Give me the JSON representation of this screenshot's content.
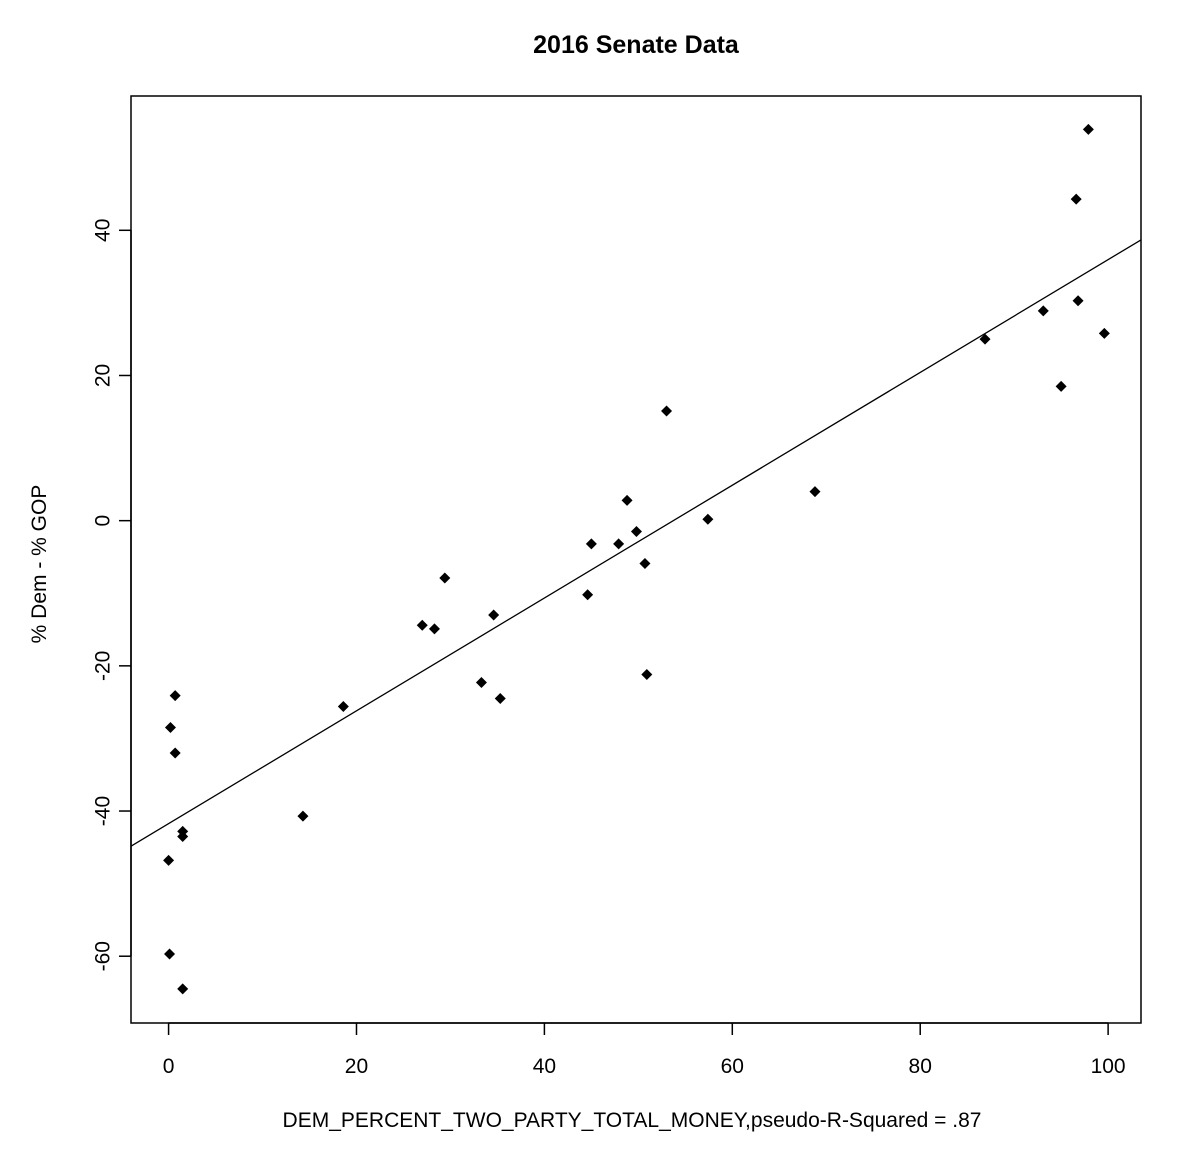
{
  "chart_data": {
    "type": "scatter",
    "title": "2016 Senate Data",
    "xlabel": "DEM_PERCENT_TWO_PARTY_TOTAL_MONEY,pseudo-R-Squared = .87",
    "ylabel": "% Dem - % GOP",
    "xlim": [
      -4,
      103.5
    ],
    "ylim": [
      -69.2,
      58.5
    ],
    "xticks": [
      0,
      20,
      40,
      60,
      80,
      100
    ],
    "yticks": [
      -60,
      -40,
      -20,
      0,
      20,
      40
    ],
    "grid": false,
    "legend": "none",
    "point_color": "#000000",
    "line_color": "#000000",
    "points": [
      {
        "x": 0.0,
        "y": -46.8
      },
      {
        "x": 0.1,
        "y": -59.7
      },
      {
        "x": 0.2,
        "y": -28.5
      },
      {
        "x": 0.7,
        "y": -24.1
      },
      {
        "x": 0.7,
        "y": -32.0
      },
      {
        "x": 1.5,
        "y": -42.8
      },
      {
        "x": 1.5,
        "y": -43.5
      },
      {
        "x": 1.5,
        "y": -64.5
      },
      {
        "x": 14.3,
        "y": -40.7
      },
      {
        "x": 18.6,
        "y": -25.6
      },
      {
        "x": 27.0,
        "y": -14.4
      },
      {
        "x": 28.3,
        "y": -14.9
      },
      {
        "x": 29.4,
        "y": -7.9
      },
      {
        "x": 33.3,
        "y": -22.3
      },
      {
        "x": 34.6,
        "y": -13.0
      },
      {
        "x": 35.3,
        "y": -24.5
      },
      {
        "x": 44.6,
        "y": -10.2
      },
      {
        "x": 45.0,
        "y": -3.2
      },
      {
        "x": 47.9,
        "y": -3.2
      },
      {
        "x": 48.8,
        "y": 2.8
      },
      {
        "x": 49.8,
        "y": -1.5
      },
      {
        "x": 50.7,
        "y": -5.9
      },
      {
        "x": 50.9,
        "y": -21.2
      },
      {
        "x": 53.0,
        "y": 15.1
      },
      {
        "x": 57.4,
        "y": 0.2
      },
      {
        "x": 68.8,
        "y": 4.0
      },
      {
        "x": 86.9,
        "y": 25.0
      },
      {
        "x": 93.1,
        "y": 28.9
      },
      {
        "x": 95.0,
        "y": 18.5
      },
      {
        "x": 96.6,
        "y": 44.3
      },
      {
        "x": 96.8,
        "y": 30.3
      },
      {
        "x": 97.9,
        "y": 53.9
      },
      {
        "x": 99.6,
        "y": 25.8
      }
    ],
    "fit_line": {
      "intercept": -41.74,
      "slope": 0.777
    }
  }
}
